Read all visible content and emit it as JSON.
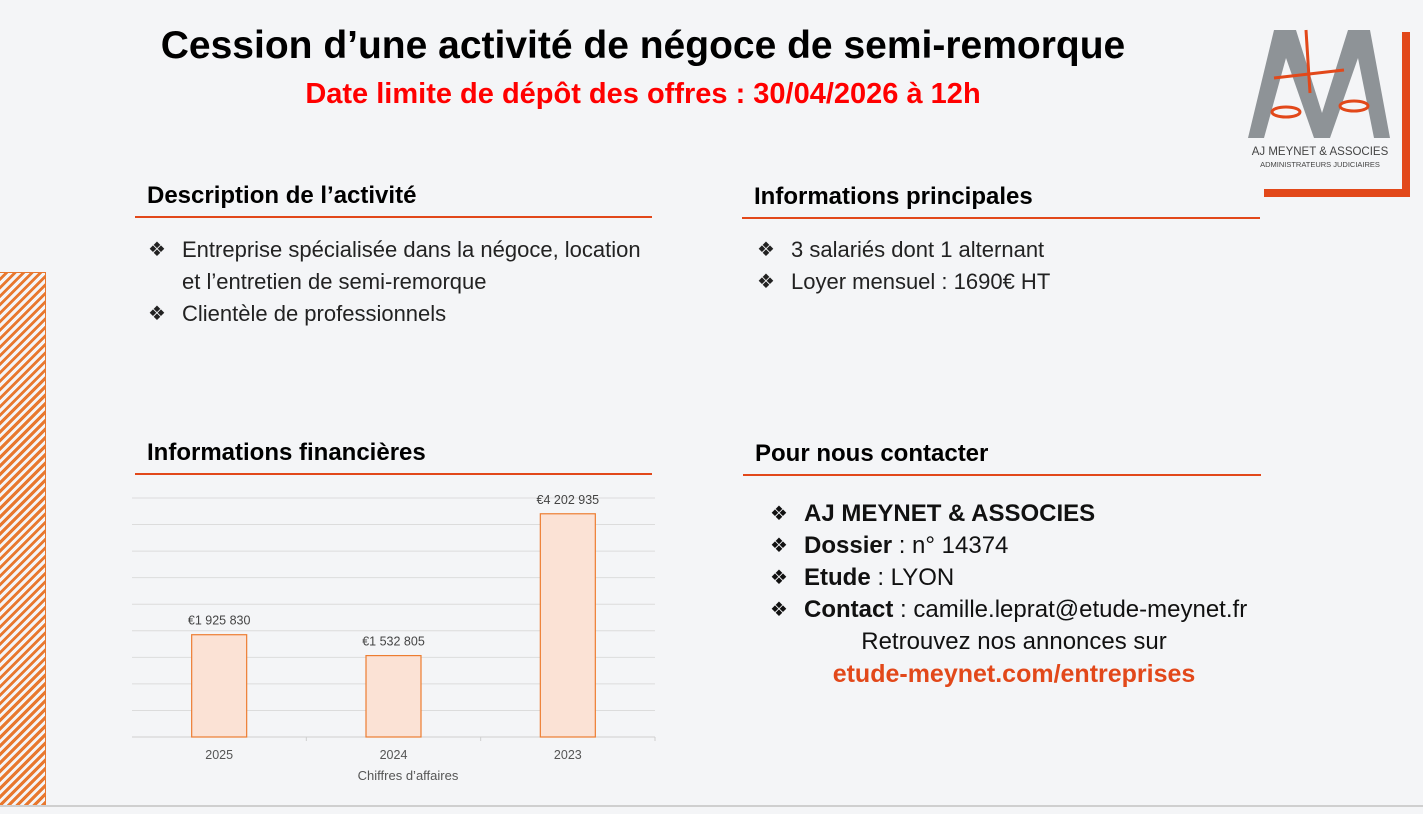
{
  "title": "Cession d’une activité de négoce de semi-remorque",
  "deadline": "Date limite de dépôt des offres : 30/04/2026 à 12h",
  "logo": {
    "name": "AJ MEYNET & ASSOCIES",
    "subtitle": "ADMINISTRATEURS JUDICIAIRES",
    "accent": "#e2481a",
    "grey": "#8e9397"
  },
  "bullet_icon": "❖",
  "description": {
    "heading": "Description de l’activité",
    "items": [
      "Entreprise spécialisée dans la négoce, location et l’entretien de semi-remorque",
      "Clientèle de professionnels"
    ]
  },
  "main_info": {
    "heading": "Informations principales",
    "items": [
      "3 salariés dont 1 alternant",
      "Loyer mensuel : 1690€ HT"
    ]
  },
  "financial": {
    "heading": "Informations financières"
  },
  "contact": {
    "heading": "Pour nous contacter",
    "company": "AJ MEYNET & ASSOCIES",
    "dossier_label": "Dossier",
    "dossier_value": " : n° 14374",
    "etude_label": "Etude",
    "etude_value": " : LYON",
    "contact_label": "Contact",
    "contact_value": " : camille.leprat@etude-meynet.fr",
    "retrouvez": "Retrouvez nos annonces sur",
    "link": "etude-meynet.com/entreprises"
  },
  "chart_data": {
    "type": "bar",
    "categories": [
      "2025",
      "2024",
      "2023"
    ],
    "values": [
      1925830,
      1532805,
      4202935
    ],
    "data_labels": [
      "€1 925 830",
      "€1 532 805",
      "€4 202 935"
    ],
    "xlabel": "Chiffres d’affaires",
    "ylabel": "",
    "ylim": [
      0,
      4500000
    ],
    "grid": true,
    "bar_fill": "#fbe2d5",
    "bar_stroke": "#ed7d31"
  }
}
